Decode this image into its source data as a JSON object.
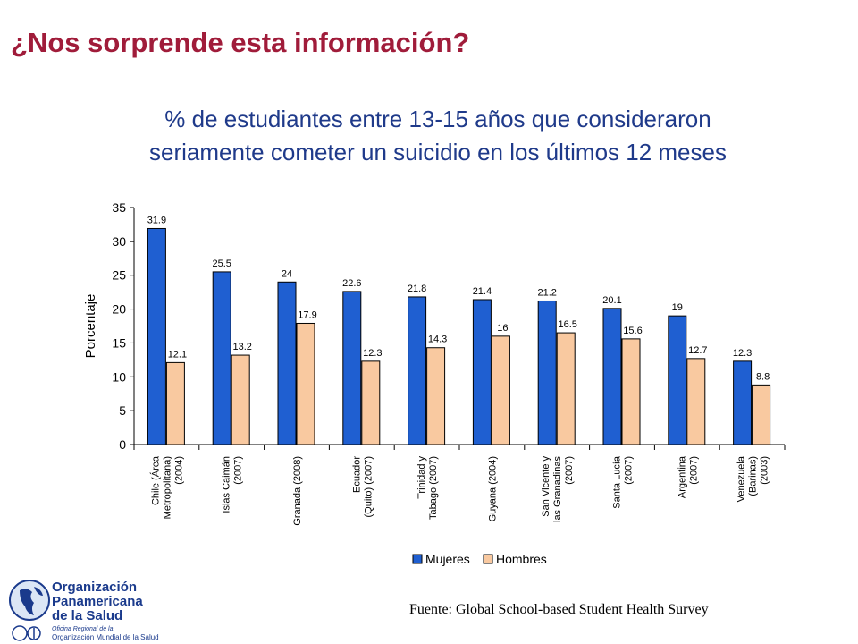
{
  "slide": {
    "title": "¿Nos sorprende esta información?",
    "subtitle_line1": "% de estudiantes entre 13-15 años que consideraron",
    "subtitle_line2": "seriamente cometer un suicidio en los últimos 12 meses",
    "source": "Fuente: Global School-based Student Health Survey"
  },
  "logo": {
    "line1": "Organización",
    "line2": "Panamericana",
    "line3": "de la Salud",
    "small1": "Oficina Regional de la",
    "small2": "Organización Mundial de la Salud"
  },
  "colors": {
    "title": "#a01c3a",
    "subtitle": "#1f3a8a",
    "mujeres": "#1f5fd1",
    "hombres": "#f9c9a0"
  },
  "chart_data": {
    "type": "bar",
    "ylabel": "Porcentaje",
    "ylim": [
      0,
      35
    ],
    "yticks": [
      0,
      5,
      10,
      15,
      20,
      25,
      30,
      35
    ],
    "categories": [
      [
        "Chile (Área",
        "Metropolitana)",
        "(2004)"
      ],
      [
        "Islas Caimán",
        "(2007)"
      ],
      [
        "Granada (2008)"
      ],
      [
        "Ecuador",
        "(Quito) (2007)"
      ],
      [
        "Trinidad y",
        "Tabago (2007)"
      ],
      [
        "Guyana (2004)"
      ],
      [
        "San Vicente y",
        "las Granadinas",
        "(2007)"
      ],
      [
        "Santa Lucía",
        "(2007)"
      ],
      [
        "Argentina",
        "(2007)"
      ],
      [
        "Venezuela",
        "(Barinas)",
        "(2003)"
      ]
    ],
    "series": [
      {
        "name": "Mujeres",
        "values": [
          31.9,
          25.5,
          24,
          22.6,
          21.8,
          21.4,
          21.2,
          20.1,
          19,
          12.3
        ],
        "labels": [
          "31.9",
          "25.5",
          "24",
          "22.6",
          "21.8",
          "21.4",
          "21.2",
          "20.1",
          "19",
          "12.3"
        ]
      },
      {
        "name": "Hombres",
        "values": [
          12.1,
          13.2,
          17.9,
          12.3,
          14.3,
          16,
          16.5,
          15.6,
          12.7,
          8.8
        ],
        "labels": [
          "12.1",
          "13.2",
          "17.9",
          "12.3",
          "14.3",
          "16",
          "16.5",
          "15.6",
          "12.7",
          "8.8"
        ]
      }
    ],
    "legend_position": "bottom"
  }
}
